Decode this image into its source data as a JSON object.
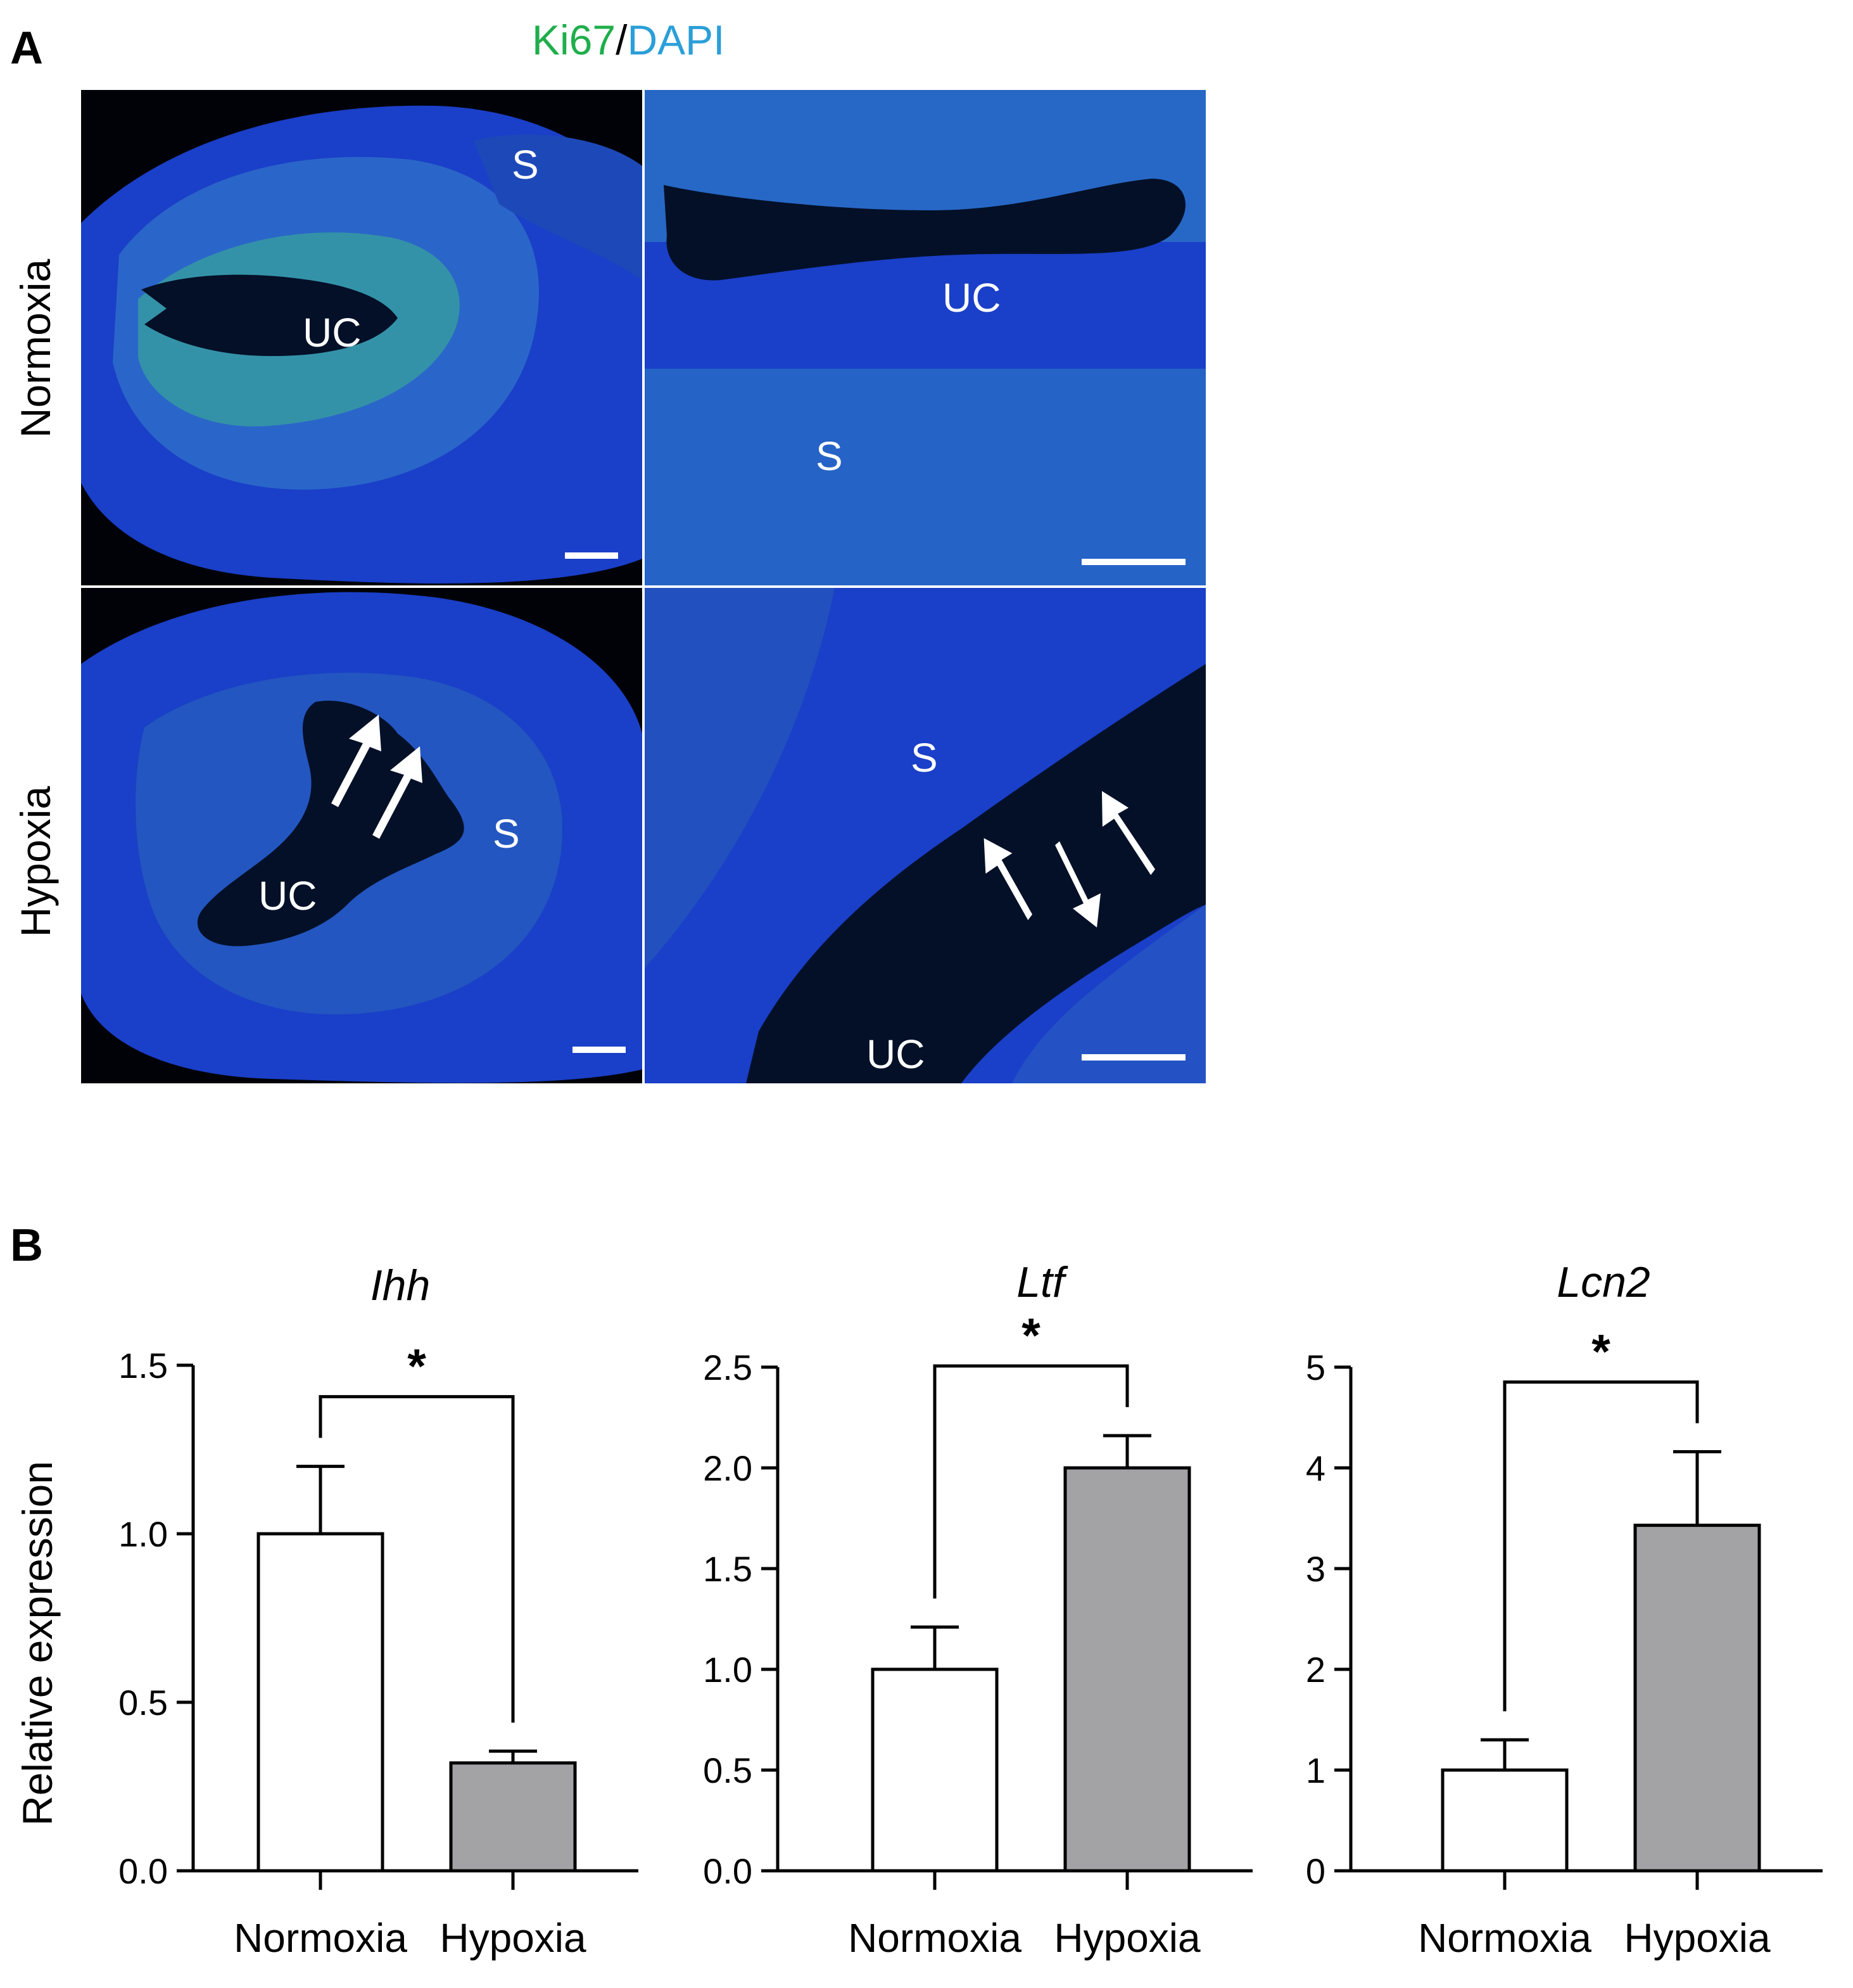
{
  "panel_a": {
    "letter": "A",
    "stain_title": {
      "ki67": "Ki67",
      "separator": "/",
      "dapi": "DAPI"
    },
    "colors": {
      "ki67": "#1fae4b",
      "dapi": "#2a9fd8",
      "tissue_blue": "#1a3fc8",
      "nuclei_green": "#35e08a",
      "lumen": "#031028"
    },
    "row_labels": [
      "Normoxia",
      "Hypoxia"
    ],
    "images": [
      {
        "row": "Normoxia",
        "magnification": "low",
        "labels": [
          "S",
          "UC"
        ],
        "arrows": 0
      },
      {
        "row": "Normoxia",
        "magnification": "high",
        "labels": [
          "UC",
          "S"
        ],
        "arrows": 0
      },
      {
        "row": "Hypoxia",
        "magnification": "low",
        "labels": [
          "S",
          "UC"
        ],
        "arrows": 2
      },
      {
        "row": "Hypoxia",
        "magnification": "high",
        "labels": [
          "S",
          "UC"
        ],
        "arrows": 3
      }
    ]
  },
  "panel_b": {
    "letter": "B"
  },
  "chart_data": [
    {
      "type": "bar",
      "title": "Ihh",
      "ylabel": "Relative expression",
      "categories": [
        "Normoxia",
        "Hypoxia"
      ],
      "values": [
        1.0,
        0.32
      ],
      "errors": [
        0.2,
        0.035
      ],
      "ylim": [
        0,
        1.5
      ],
      "yticks": [
        "0.0",
        "0.5",
        "1.0",
        "1.5"
      ],
      "significance": "*",
      "bar_colors": [
        "#ffffff",
        "#a3a3a6"
      ]
    },
    {
      "type": "bar",
      "title": "Ltf",
      "ylabel": "",
      "categories": [
        "Normoxia",
        "Hypoxia"
      ],
      "values": [
        1.0,
        2.0
      ],
      "errors": [
        0.21,
        0.16
      ],
      "ylim": [
        0,
        2.5
      ],
      "yticks": [
        "0.0",
        "0.5",
        "1.0",
        "1.5",
        "2.0",
        "2.5"
      ],
      "significance": "*",
      "bar_colors": [
        "#ffffff",
        "#a3a3a6"
      ]
    },
    {
      "type": "bar",
      "title": "Lcn2",
      "ylabel": "",
      "categories": [
        "Normoxia",
        "Hypoxia"
      ],
      "values": [
        1.0,
        3.43
      ],
      "errors": [
        0.3,
        0.73
      ],
      "ylim": [
        0,
        5
      ],
      "yticks": [
        "0",
        "1",
        "2",
        "3",
        "4",
        "5"
      ],
      "significance": "*",
      "bar_colors": [
        "#ffffff",
        "#a3a3a6"
      ]
    }
  ]
}
